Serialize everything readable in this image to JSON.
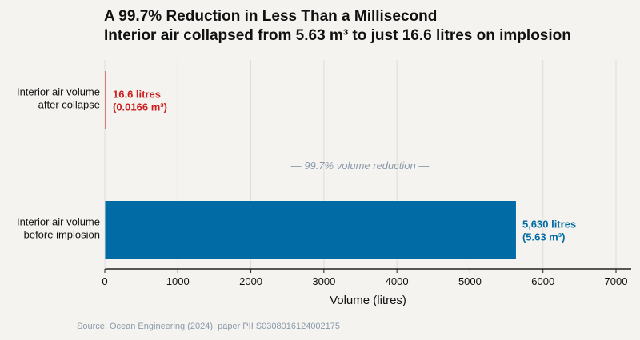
{
  "chart_data": {
    "type": "bar",
    "orientation": "horizontal",
    "title": "A 99.7% Reduction in Less Than a Millisecond",
    "subtitle": "Interior air collapsed from 5.63 m³ to just 16.6 litres on implosion",
    "xlabel": "Volume (litres)",
    "ylabel": "",
    "xlim": [
      0,
      7200
    ],
    "xticks": [
      0,
      1000,
      2000,
      3000,
      4000,
      5000,
      6000,
      7000
    ],
    "grid": true,
    "categories": [
      "Interior air volume\nafter collapse",
      "Interior air volume\nbefore implosion"
    ],
    "values": [
      16.6,
      5630
    ],
    "colors": [
      "#cc1f1f",
      "#006ba4"
    ],
    "data_labels": [
      [
        "16.6 litres",
        "(0.0166 m³)"
      ],
      [
        "5,630 litres",
        "(5.63 m³)"
      ]
    ],
    "annotation": "— 99.7% volume reduction —"
  },
  "source": "Source: Ocean Engineering (2024), paper PII S0308016124002175"
}
